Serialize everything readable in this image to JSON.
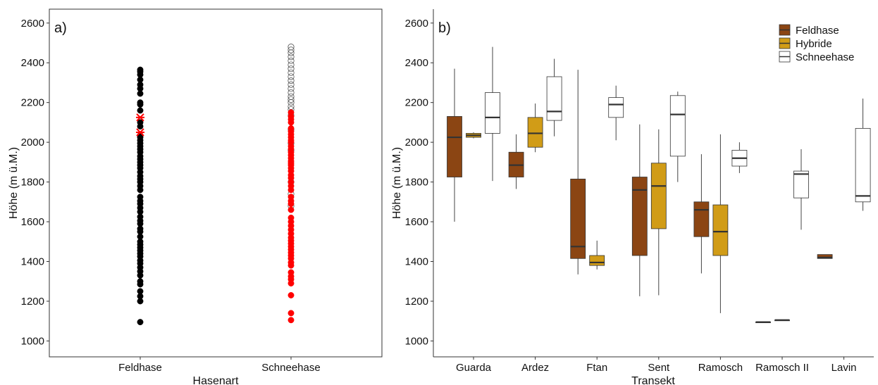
{
  "chart_data": [
    {
      "panel": "a)",
      "type": "scatter",
      "xlabel": "Hasenart",
      "ylabel": "Höhe (m ü.M.)",
      "categories": [
        "Feldhase",
        "Schneehase"
      ],
      "ylim": [
        920,
        2670
      ],
      "yticks": [
        1000,
        1200,
        1400,
        1600,
        1800,
        2000,
        2200,
        2400,
        2600
      ],
      "grid": false,
      "series": [
        {
          "category": "Feldhase",
          "marker": "filled-circle",
          "color": "#000000",
          "values": [
            1095,
            1200,
            1225,
            1250,
            1285,
            1300,
            1330,
            1350,
            1370,
            1390,
            1405,
            1425,
            1440,
            1455,
            1470,
            1485,
            1500,
            1525,
            1550,
            1565,
            1590,
            1605,
            1625,
            1650,
            1670,
            1690,
            1705,
            1725,
            1760,
            1780,
            1800,
            1815,
            1830,
            1850,
            1870,
            1885,
            1900,
            1915,
            1930,
            1950,
            1965,
            1980,
            1995,
            2010,
            2025,
            2035,
            2080,
            2100,
            2160,
            2190,
            2200,
            2245,
            2270,
            2290,
            2315,
            2340,
            2355,
            2365
          ]
        },
        {
          "category": "Feldhase",
          "marker": "cross",
          "color": "#ff0000",
          "values": [
            2050,
            2125
          ]
        },
        {
          "category": "Schneehase",
          "marker": "open-circle",
          "color": "#000000",
          "values": [
            1680,
            1740,
            1800,
            1960,
            1995,
            2065,
            2135,
            2165,
            2180,
            2200,
            2215,
            2230,
            2250,
            2270,
            2290,
            2310,
            2330,
            2350,
            2370,
            2390,
            2410,
            2430,
            2450,
            2465,
            2480
          ]
        },
        {
          "category": "Schneehase",
          "marker": "filled-circle",
          "color": "#ff0000",
          "values": [
            1105,
            1140,
            1230,
            1290,
            1310,
            1325,
            1345,
            1380,
            1395,
            1415,
            1430,
            1445,
            1460,
            1475,
            1490,
            1505,
            1520,
            1540,
            1560,
            1580,
            1600,
            1620,
            1660,
            1690,
            1705,
            1725,
            1760,
            1780,
            1800,
            1820,
            1835,
            1855,
            1870,
            1885,
            1895,
            1905,
            1920,
            1935,
            1950,
            1965,
            1980,
            2000,
            2010,
            2025,
            2040,
            2055,
            2070,
            2100,
            2115,
            2130,
            2150
          ]
        }
      ]
    },
    {
      "panel": "b)",
      "type": "box",
      "xlabel": "Transekt",
      "ylabel": "Höhe (m ü.M.)",
      "categories": [
        "Guarda",
        "Ardez",
        "Ftan",
        "Sent",
        "Ramosch",
        "Ramosch II",
        "Lavin"
      ],
      "ylim": [
        920,
        2670
      ],
      "yticks": [
        1000,
        1200,
        1400,
        1600,
        1800,
        2000,
        2200,
        2400,
        2600
      ],
      "grid": false,
      "legend_position": "top-right",
      "legend": [
        "Feldhase",
        "Hybride",
        "Schneehase"
      ],
      "colors": {
        "Feldhase": "#8B4513",
        "Hybride": "#D19C17",
        "Schneehase": "#ffffff"
      },
      "boxes": [
        {
          "category": "Guarda",
          "group": "Feldhase",
          "min": 1600,
          "q1": 1825,
          "median": 2025,
          "q3": 2130,
          "max": 2370
        },
        {
          "category": "Guarda",
          "group": "Hybride",
          "min": 2020,
          "q1": 2025,
          "median": 2035,
          "q3": 2045,
          "max": 2050
        },
        {
          "category": "Guarda",
          "group": "Schneehase",
          "min": 1805,
          "q1": 2045,
          "median": 2125,
          "q3": 2250,
          "max": 2480
        },
        {
          "category": "Ardez",
          "group": "Feldhase",
          "min": 1765,
          "q1": 1825,
          "median": 1885,
          "q3": 1950,
          "max": 2040
        },
        {
          "category": "Ardez",
          "group": "Hybride",
          "min": 1950,
          "q1": 1975,
          "median": 2045,
          "q3": 2125,
          "max": 2195
        },
        {
          "category": "Ardez",
          "group": "Schneehase",
          "min": 2030,
          "q1": 2110,
          "median": 2155,
          "q3": 2330,
          "max": 2420
        },
        {
          "category": "Ftan",
          "group": "Feldhase",
          "min": 1335,
          "q1": 1415,
          "median": 1475,
          "q3": 1815,
          "max": 2365
        },
        {
          "category": "Ftan",
          "group": "Hybride",
          "min": 1360,
          "q1": 1380,
          "median": 1395,
          "q3": 1430,
          "max": 1505
        },
        {
          "category": "Ftan",
          "group": "Schneehase",
          "min": 2010,
          "q1": 2125,
          "median": 2190,
          "q3": 2225,
          "max": 2285
        },
        {
          "category": "Sent",
          "group": "Feldhase",
          "min": 1225,
          "q1": 1430,
          "median": 1760,
          "q3": 1825,
          "max": 2090
        },
        {
          "category": "Sent",
          "group": "Hybride",
          "min": 1230,
          "q1": 1565,
          "median": 1780,
          "q3": 1895,
          "max": 2065
        },
        {
          "category": "Sent",
          "group": "Schneehase",
          "min": 1800,
          "q1": 1930,
          "median": 2140,
          "q3": 2235,
          "max": 2255
        },
        {
          "category": "Ramosch",
          "group": "Feldhase",
          "min": 1340,
          "q1": 1525,
          "median": 1660,
          "q3": 1700,
          "max": 1940
        },
        {
          "category": "Ramosch",
          "group": "Hybride",
          "min": 1140,
          "q1": 1430,
          "median": 1550,
          "q3": 1685,
          "max": 2040
        },
        {
          "category": "Ramosch",
          "group": "Schneehase",
          "min": 1845,
          "q1": 1880,
          "median": 1920,
          "q3": 1960,
          "max": 2000
        },
        {
          "category": "Ramosch II",
          "group": "Feldhase",
          "min": 1095,
          "q1": 1095,
          "median": 1095,
          "q3": 1095,
          "max": 1095
        },
        {
          "category": "Ramosch II",
          "group": "Hybride",
          "min": 1105,
          "q1": 1105,
          "median": 1105,
          "q3": 1105,
          "max": 1105
        },
        {
          "category": "Ramosch II",
          "group": "Schneehase",
          "min": 1560,
          "q1": 1720,
          "median": 1840,
          "q3": 1855,
          "max": 1965
        },
        {
          "category": "Lavin",
          "group": "Feldhase",
          "min": 1415,
          "q1": 1415,
          "median": 1420,
          "q3": 1435,
          "max": 1435
        },
        {
          "category": "Lavin",
          "group": "Schneehase",
          "min": 1655,
          "q1": 1700,
          "median": 1730,
          "q3": 2070,
          "max": 2220
        }
      ]
    }
  ]
}
